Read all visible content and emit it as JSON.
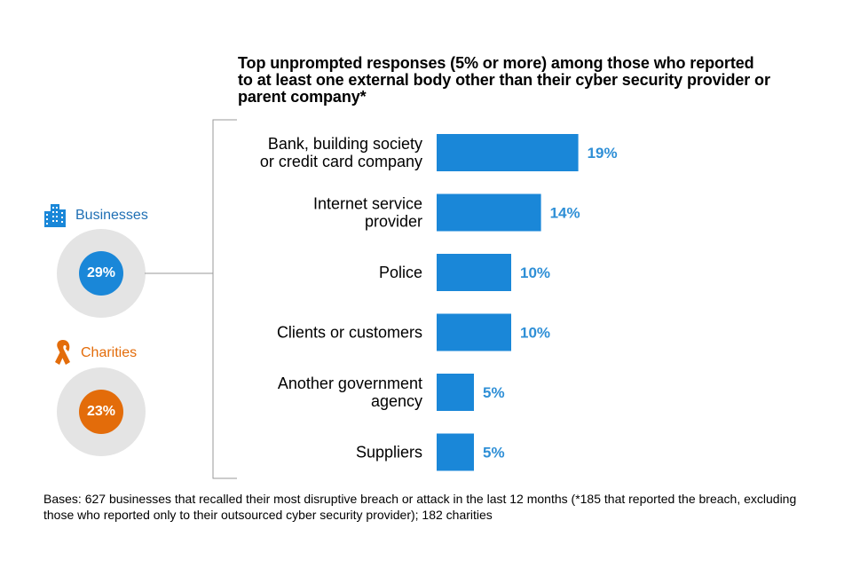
{
  "chart_data": {
    "type": "bar",
    "orientation": "horizontal",
    "title": "Top unprompted responses (5% or more) among those who reported to at least one external body other than their cyber security provider or parent company*",
    "categories": [
      [
        "Bank, building society",
        "or credit card company"
      ],
      [
        "Internet service",
        "provider"
      ],
      [
        "Police"
      ],
      [
        "Clients or customers"
      ],
      [
        "Another government",
        "agency"
      ],
      [
        "Suppliers"
      ]
    ],
    "values": [
      19,
      14,
      10,
      10,
      5,
      5
    ],
    "value_labels": [
      "19%",
      "14%",
      "10%",
      "10%",
      "5%",
      "5%"
    ],
    "xlim": [
      0,
      20
    ],
    "unit": "%",
    "bar_color": "#1a87d8",
    "label_color": "#2f8fd6"
  },
  "summary": {
    "businesses": {
      "label": "Businesses",
      "value": "29%",
      "color": "#1a87d8",
      "label_color": "#1f6fb4",
      "icon": "building-icon"
    },
    "charities": {
      "label": "Charities",
      "value": "23%",
      "color": "#e36c0a",
      "label_color": "#e36c0a",
      "icon": "ribbon-icon"
    }
  },
  "footnote": "Bases: 627 businesses that recalled their most disruptive breach or attack in the last 12 months (*185 that reported the breach, excluding those who reported only to their outsourced cyber security provider); 182 charities"
}
